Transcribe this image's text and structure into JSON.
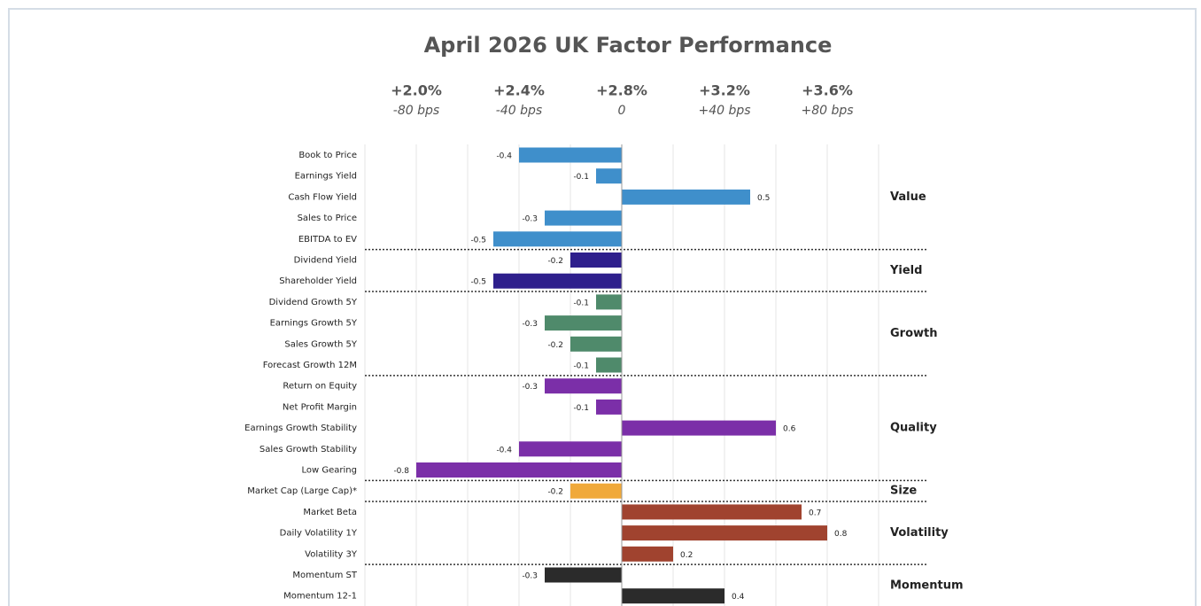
{
  "chart_data": {
    "type": "bar",
    "orientation": "horizontal",
    "title": "April 2026 UK Factor Performance",
    "xlim": [
      -1,
      1
    ],
    "xgrid": [
      -1,
      -0.8,
      -0.6,
      -0.4,
      -0.2,
      0,
      0.2,
      0.4,
      0.6,
      0.8,
      1
    ],
    "xticks": [
      {
        "value": -0.8,
        "label": "-80 bps"
      },
      {
        "value": -0.4,
        "label": "-40 bps"
      },
      0,
      {
        "value": 0.4,
        "label": "+40 bps"
      },
      {
        "value": 0.8,
        "label": "+80 bps"
      }
    ],
    "xtick_levels": [
      "+2.0%",
      "+2.4%",
      "+2.8%",
      "+3.2%",
      "+3.6%"
    ],
    "groups": [
      {
        "name": "Value",
        "color": "#3f8fcb",
        "categories": [
          "Book to Price",
          "Earnings Yield",
          "Cash Flow Yield",
          "Sales to Price",
          "EBITDA to EV"
        ],
        "values": [
          -0.4,
          -0.1,
          0.5,
          -0.3,
          -0.5
        ]
      },
      {
        "name": "Yield",
        "color": "#2e1f8c",
        "categories": [
          "Dividend Yield",
          "Shareholder Yield"
        ],
        "values": [
          -0.2,
          -0.5
        ]
      },
      {
        "name": "Growth",
        "color": "#4f8a6b",
        "categories": [
          "Dividend Growth 5Y",
          "Earnings Growth 5Y",
          "Sales Growth 5Y",
          "Forecast Growth 12M"
        ],
        "values": [
          -0.1,
          -0.3,
          -0.2,
          -0.1
        ]
      },
      {
        "name": "Quality",
        "color": "#7b2fa8",
        "categories": [
          "Return on Equity",
          "Net Profit Margin",
          "Earnings Growth Stability",
          "Sales Growth Stability",
          "Low Gearing"
        ],
        "values": [
          -0.3,
          -0.1,
          0.6,
          -0.4,
          -0.8
        ]
      },
      {
        "name": "Size",
        "color": "#f0a93a",
        "categories": [
          "Market Cap (Large Cap)*"
        ],
        "values": [
          -0.2
        ]
      },
      {
        "name": "Volatility",
        "color": "#a0432f",
        "categories": [
          "Market Beta",
          "Daily Volatility 1Y",
          "Volatility 3Y"
        ],
        "values": [
          0.7,
          0.8,
          0.2
        ]
      },
      {
        "name": "Momentum",
        "color": "#2b2b2b",
        "categories": [
          "Momentum ST",
          "Momentum 12-1"
        ],
        "values": [
          -0.3,
          0.4
        ]
      }
    ]
  }
}
